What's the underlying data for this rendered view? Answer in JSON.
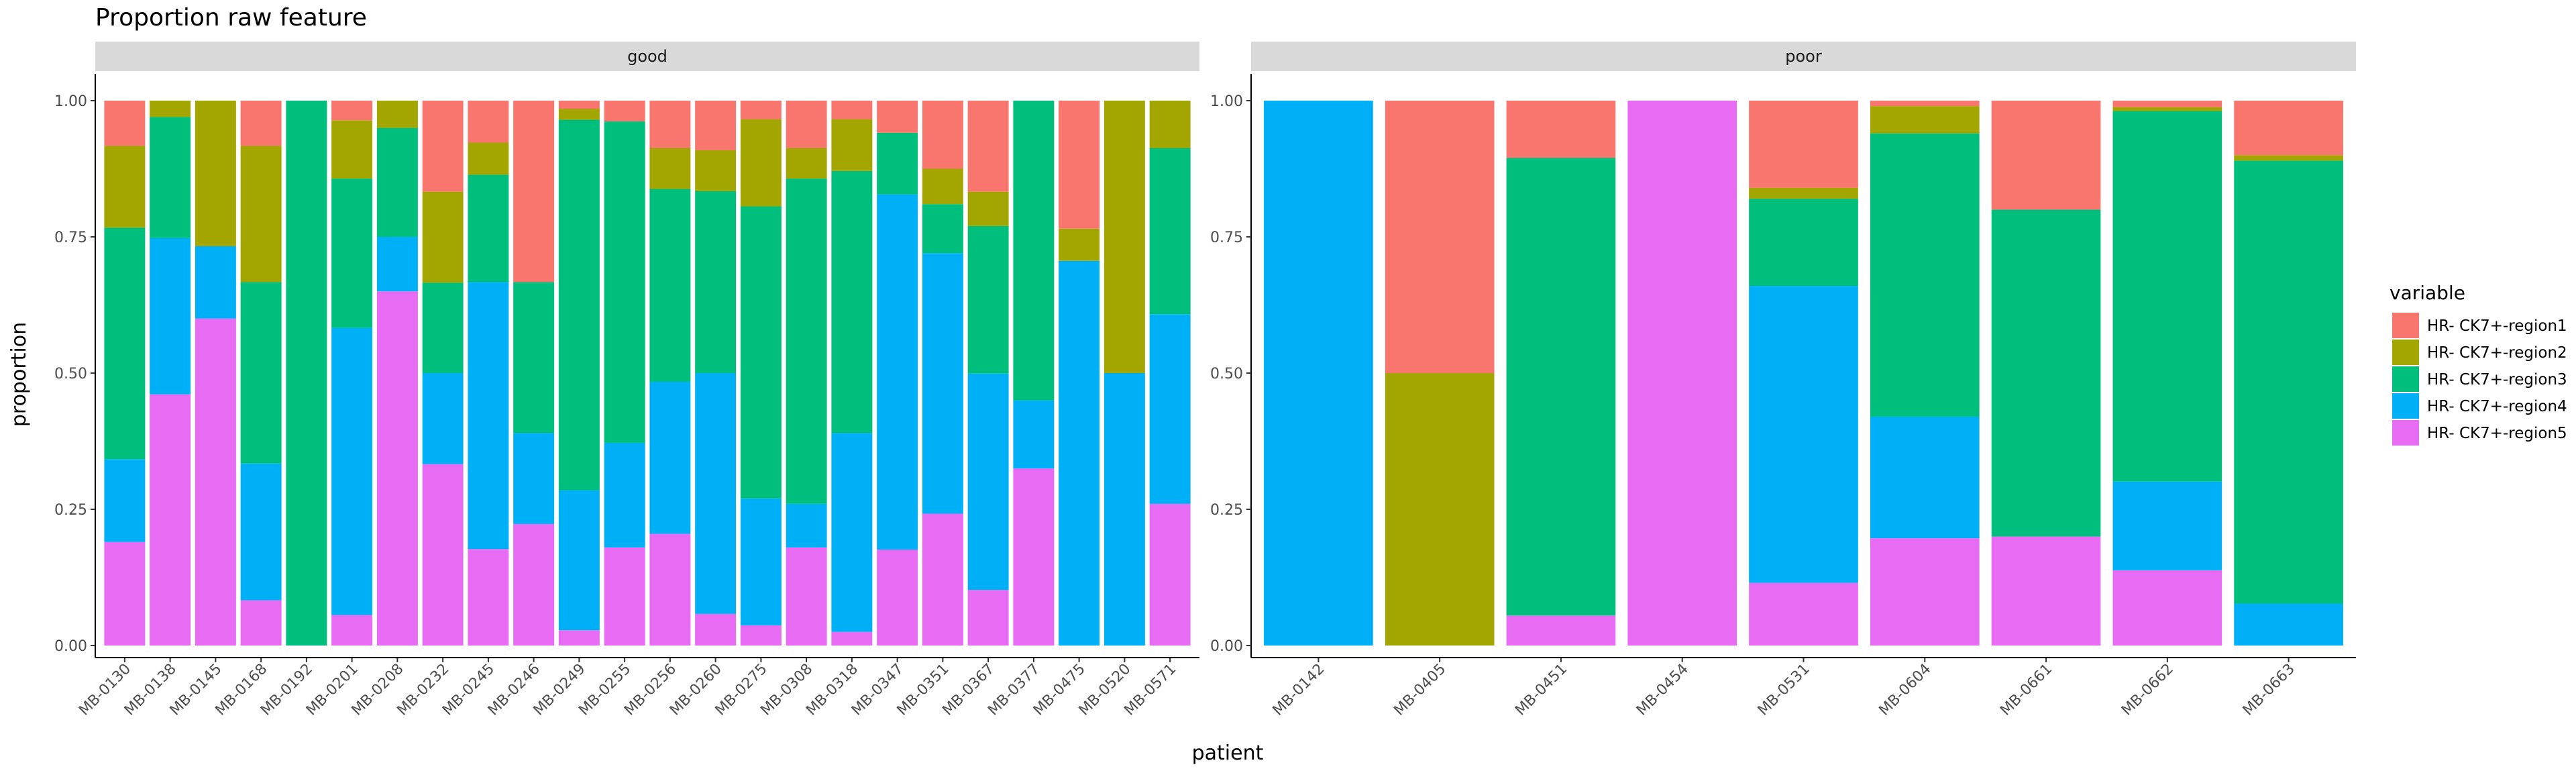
{
  "chart_data": {
    "type": "bar",
    "stacked": true,
    "title": "Proportion raw feature",
    "xlabel": "patient",
    "ylabel": "proportion",
    "ylim": [
      0,
      1
    ],
    "y_ticks": [
      "0.00",
      "0.25",
      "0.50",
      "0.75",
      "1.00"
    ],
    "legend": {
      "title": "variable",
      "placement": "right",
      "series": [
        "HR- CK7+-region1",
        "HR- CK7+-region2",
        "HR- CK7+-region3",
        "HR- CK7+-region4",
        "HR- CK7+-region5"
      ],
      "colors": [
        "#F8766D",
        "#A3A500",
        "#00BF7D",
        "#00B0F6",
        "#E76BF3"
      ]
    },
    "panels": [
      {
        "facet": "good",
        "categories": [
          "MB-0130",
          "MB-0138",
          "MB-0145",
          "MB-0168",
          "MB-0192",
          "MB-0201",
          "MB-0208",
          "MB-0232",
          "MB-0245",
          "MB-0246",
          "MB-0249",
          "MB-0255",
          "MB-0256",
          "MB-0260",
          "MB-0275",
          "MB-0308",
          "MB-0318",
          "MB-0347",
          "MB-0351",
          "MB-0367",
          "MB-0377",
          "MB-0475",
          "MB-0520",
          "MB-0571"
        ],
        "series": [
          {
            "name": "HR- CK7+-region1",
            "values": [
              0.083,
              0.0,
              0.0,
              0.083,
              0.0,
              0.036,
              0.0,
              0.167,
              0.077,
              0.333,
              0.015,
              0.038,
              0.087,
              0.091,
              0.034,
              0.087,
              0.034,
              0.059,
              0.125,
              0.167,
              0.0,
              0.235,
              0.0,
              0.0
            ]
          },
          {
            "name": "HR- CK7+-region2",
            "values": [
              0.15,
              0.03,
              0.267,
              0.25,
              0.0,
              0.107,
              0.05,
              0.167,
              0.059,
              0.0,
              0.02,
              0.0,
              0.075,
              0.075,
              0.16,
              0.056,
              0.095,
              0.0,
              0.065,
              0.063,
              0.0,
              0.059,
              0.5,
              0.087
            ]
          },
          {
            "name": "HR- CK7+-region3",
            "values": [
              0.425,
              0.222,
              0.0,
              0.333,
              1.0,
              0.274,
              0.2,
              0.166,
              0.197,
              0.277,
              0.68,
              0.59,
              0.354,
              0.334,
              0.536,
              0.597,
              0.481,
              0.113,
              0.09,
              0.271,
              0.55,
              0.0,
              0.0,
              0.305
            ]
          },
          {
            "name": "HR- CK7+-region4",
            "values": [
              0.152,
              0.287,
              0.133,
              0.251,
              0.0,
              0.527,
              0.1,
              0.167,
              0.49,
              0.167,
              0.257,
              0.192,
              0.279,
              0.442,
              0.233,
              0.08,
              0.365,
              0.652,
              0.478,
              0.397,
              0.125,
              0.706,
              0.5,
              0.348
            ]
          },
          {
            "name": "HR- CK7+-region5",
            "values": [
              0.19,
              0.461,
              0.6,
              0.083,
              0.0,
              0.056,
              0.65,
              0.333,
              0.177,
              0.223,
              0.028,
              0.18,
              0.205,
              0.058,
              0.037,
              0.18,
              0.025,
              0.176,
              0.242,
              0.102,
              0.325,
              0.0,
              0.0,
              0.26
            ]
          }
        ]
      },
      {
        "facet": "poor",
        "categories": [
          "MB-0142",
          "MB-0405",
          "MB-0451",
          "MB-0454",
          "MB-0531",
          "MB-0604",
          "MB-0661",
          "MB-0662",
          "MB-0663"
        ],
        "series": [
          {
            "name": "HR- CK7+-region1",
            "values": [
              0.0,
              0.5,
              0.105,
              0.0,
              0.16,
              0.01,
              0.2,
              0.012,
              0.1
            ]
          },
          {
            "name": "HR- CK7+-region2",
            "values": [
              0.0,
              0.5,
              0.0,
              0.0,
              0.02,
              0.05,
              0.0,
              0.007,
              0.01
            ]
          },
          {
            "name": "HR- CK7+-region3",
            "values": [
              0.0,
              0.0,
              0.84,
              0.0,
              0.16,
              0.52,
              0.6,
              0.68,
              0.813
            ]
          },
          {
            "name": "HR- CK7+-region4",
            "values": [
              1.0,
              0.0,
              0.0,
              0.0,
              0.545,
              0.223,
              0.0,
              0.163,
              0.077
            ]
          },
          {
            "name": "HR- CK7+-region5",
            "values": [
              0.0,
              0.0,
              0.055,
              1.0,
              0.115,
              0.197,
              0.2,
              0.138,
              0.0
            ]
          }
        ]
      }
    ]
  }
}
